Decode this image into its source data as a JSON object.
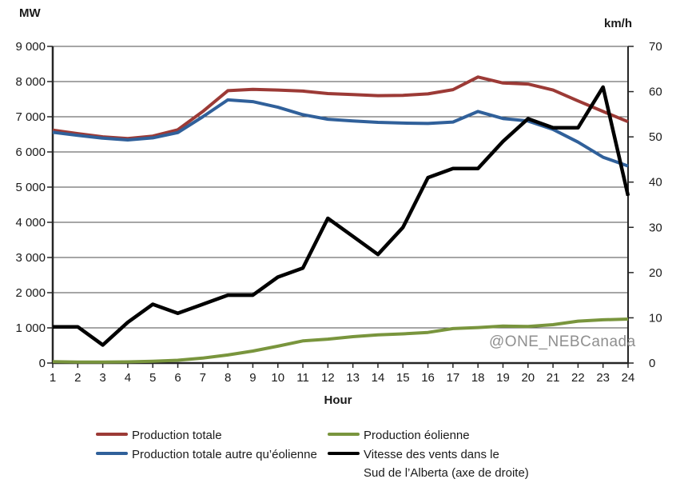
{
  "watermark": "@ONE_NEBCanada",
  "left_axis_unit": "MW",
  "right_axis_unit": "km/h",
  "x_axis_title": "Hour",
  "chart_data": {
    "type": "line",
    "x": [
      1,
      2,
      3,
      4,
      5,
      6,
      7,
      8,
      9,
      10,
      11,
      12,
      13,
      14,
      15,
      16,
      17,
      18,
      19,
      20,
      21,
      22,
      23,
      24
    ],
    "x_tick_labels": [
      "1",
      "2",
      "3",
      "4",
      "5",
      "6",
      "7",
      "8",
      "9",
      "10",
      "11",
      "12",
      "13",
      "14",
      "15",
      "16",
      "17",
      "18",
      "19",
      "20",
      "21",
      "22",
      "23",
      "24"
    ],
    "xlabel": "Hour",
    "grid": true,
    "legend_position": "bottom",
    "left_axis": {
      "unit": "MW",
      "min": 0,
      "max": 9000,
      "tick_step": 1000,
      "tick_labels": [
        "0",
        "1 000",
        "2 000",
        "3 000",
        "4 000",
        "5 000",
        "6 000",
        "7 000",
        "8 000",
        "9 000"
      ]
    },
    "right_axis": {
      "unit": "km/h",
      "min": 0,
      "max": 70,
      "tick_step": 10,
      "tick_labels": [
        "0",
        "10",
        "20",
        "30",
        "40",
        "50",
        "60",
        "70"
      ]
    },
    "series": [
      {
        "name": "Production totale",
        "axis": "left",
        "color": "#9c3a36",
        "width": 4,
        "values": [
          6620,
          6520,
          6430,
          6380,
          6450,
          6630,
          7150,
          7740,
          7780,
          7760,
          7730,
          7660,
          7630,
          7600,
          7610,
          7650,
          7770,
          8130,
          7960,
          7930,
          7760,
          7450,
          7150,
          6860
        ]
      },
      {
        "name": "Production totale autre qu’éolienne",
        "axis": "left",
        "color": "#30609a",
        "width": 4,
        "values": [
          6560,
          6470,
          6390,
          6340,
          6400,
          6550,
          7000,
          7480,
          7430,
          7270,
          7060,
          6930,
          6880,
          6840,
          6820,
          6810,
          6850,
          7150,
          6950,
          6880,
          6640,
          6280,
          5850,
          5600
        ]
      },
      {
        "name": "Production éolienne",
        "axis": "left",
        "color": "#79953d",
        "width": 4,
        "values": [
          40,
          30,
          30,
          35,
          50,
          80,
          140,
          230,
          340,
          480,
          630,
          680,
          750,
          800,
          830,
          870,
          980,
          1010,
          1050,
          1040,
          1090,
          1190,
          1230,
          1250
        ]
      },
      {
        "name": "Vitesse des vents dans le Sud de l’Alberta (axe de droite)",
        "axis": "right",
        "color": "#000000",
        "width": 4.5,
        "values": [
          8,
          8,
          4,
          9,
          13,
          11,
          13,
          15,
          15,
          19,
          21,
          32,
          28,
          24,
          30,
          41,
          43,
          43,
          49,
          54,
          52,
          52,
          61,
          37
        ]
      }
    ]
  },
  "legend": {
    "items": [
      {
        "label": "Production totale",
        "color": "#9c3a36",
        "col": 0,
        "row": 0
      },
      {
        "label": "Production totale autre qu’éolienne",
        "color": "#30609a",
        "col": 0,
        "row": 1
      },
      {
        "label": "Production éolienne",
        "color": "#79953d",
        "col": 1,
        "row": 0
      },
      {
        "label": "Vitesse des vents dans le\nSud de l’Alberta (axe de droite)",
        "color": "#000000",
        "col": 1,
        "row": 1
      }
    ]
  }
}
